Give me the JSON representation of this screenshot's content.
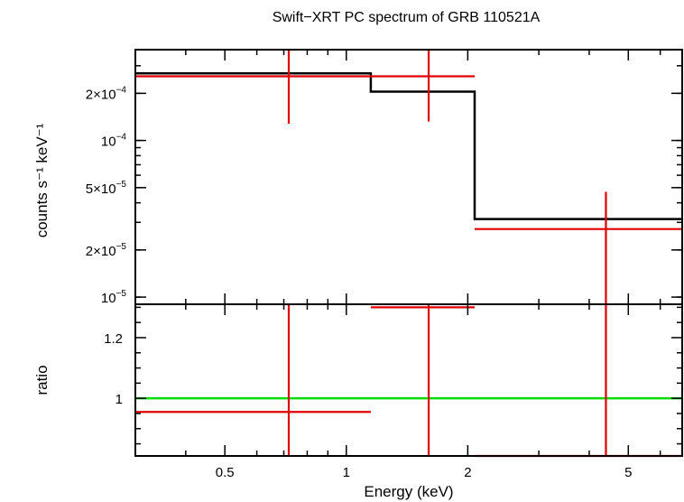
{
  "chart_data": [
    {
      "type": "line",
      "title": "Swift−XRT PC spectrum of GRB 110521A",
      "ylabel": "counts s⁻¹ keV⁻¹",
      "xlabel": "",
      "x_scale": "log",
      "y_scale": "log",
      "xlim": [
        0.3,
        6.8
      ],
      "ylim": [
        9e-06,
        0.00038
      ],
      "y_ticks": [
        {
          "value": 0.0002,
          "mant": "2×10",
          "exp": "−4"
        },
        {
          "value": 0.0001,
          "mant": "10",
          "exp": "−4"
        },
        {
          "value": 5e-05,
          "mant": "5×10",
          "exp": "−5"
        },
        {
          "value": 2e-05,
          "mant": "2×10",
          "exp": "−5"
        },
        {
          "value": 1e-05,
          "mant": "10",
          "exp": "−5"
        }
      ],
      "model": {
        "name": "",
        "color": "#000000",
        "steps": [
          {
            "x0": 0.3,
            "x1": 1.15,
            "y": 0.000268
          },
          {
            "x0": 1.15,
            "x1": 2.08,
            "y": 0.000205
          },
          {
            "x0": 2.08,
            "x1": 6.8,
            "y": 3.15e-05
          }
        ]
      },
      "data": {
        "name": "",
        "color": "#e00000",
        "points": [
          {
            "x": 0.72,
            "xlo": 0.3,
            "xhi": 1.15,
            "y": 0.000257,
            "ylo": 0.000128,
            "yhi": 0.00038
          },
          {
            "x": 1.6,
            "xlo": 1.15,
            "xhi": 2.08,
            "y": 0.000257,
            "ylo": 0.000132,
            "yhi": 0.00038
          },
          {
            "x": 4.4,
            "xlo": 2.08,
            "xhi": 6.8,
            "y": 2.72e-05,
            "ylo": 9e-06,
            "yhi": 4.7e-05
          }
        ]
      }
    },
    {
      "type": "line",
      "title": "",
      "ylabel": "ratio",
      "xlabel": "Energy (keV)",
      "x_scale": "log",
      "y_scale": "linear",
      "xlim": [
        0.3,
        6.8
      ],
      "ylim": [
        0.81,
        1.31
      ],
      "x_ticks": [
        {
          "value": 0.5,
          "label": "0.5"
        },
        {
          "value": 1,
          "label": "1"
        },
        {
          "value": 2,
          "label": "2"
        },
        {
          "value": 5,
          "label": "5"
        }
      ],
      "y_ticks": [
        {
          "value": 1.2,
          "label": "1.2"
        },
        {
          "value": 1,
          "label": "1"
        }
      ],
      "reference_line": {
        "y": 1,
        "color": "#00dd00"
      },
      "data": {
        "name": "",
        "color": "#e00000",
        "points": [
          {
            "x": 0.72,
            "xlo": 0.3,
            "xhi": 1.15,
            "y": 0.955,
            "ylo": 0.81,
            "yhi": 1.31
          },
          {
            "x": 1.6,
            "xlo": 1.15,
            "xhi": 2.08,
            "y": 1.3,
            "ylo": 0.81,
            "yhi": 1.31
          },
          {
            "x": 4.4,
            "xlo": 2.08,
            "xhi": 6.8,
            "y": 0.81,
            "ylo": 0.81,
            "yhi": 1.31
          }
        ]
      }
    }
  ]
}
